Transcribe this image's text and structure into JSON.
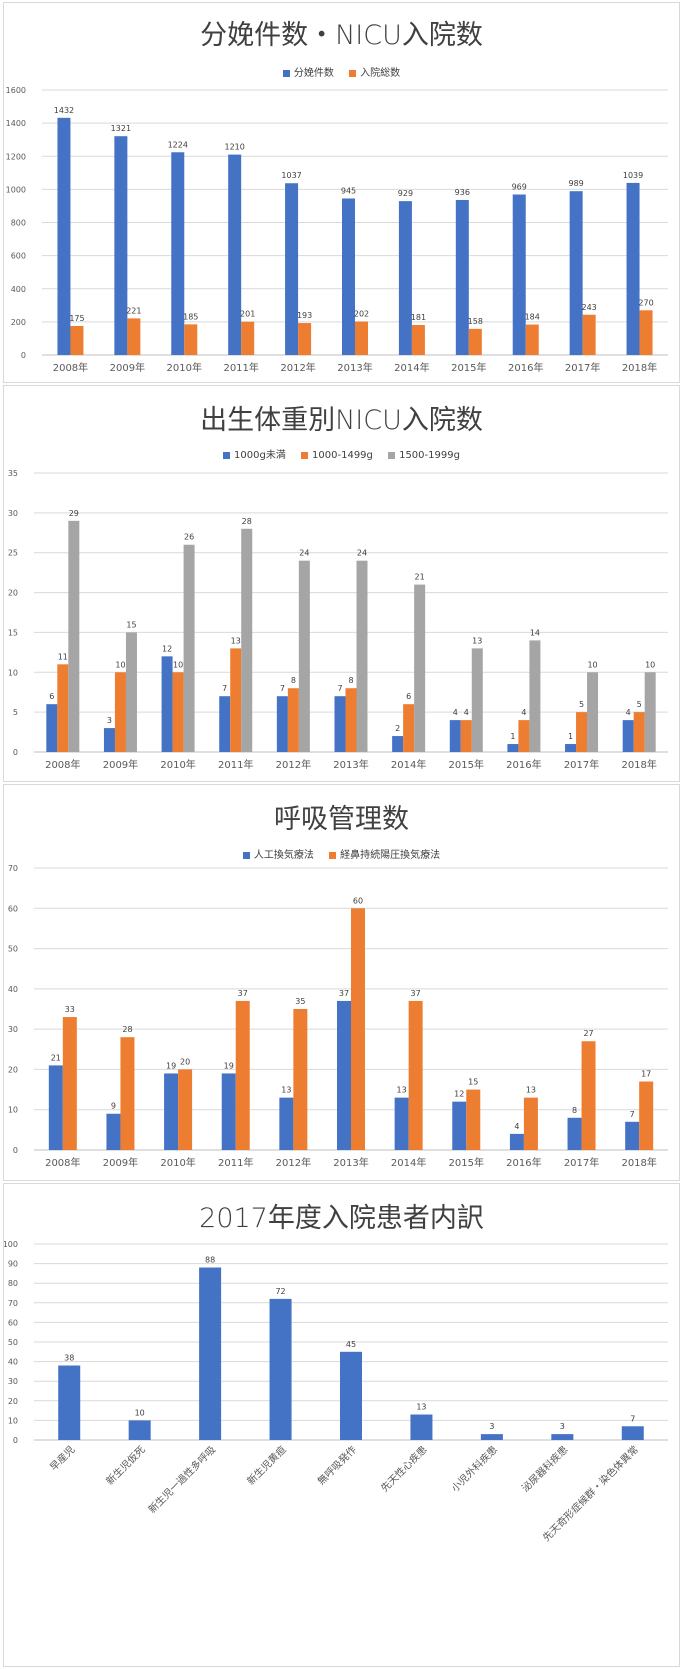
{
  "charts": [
    {
      "type": "bar",
      "title": "分娩件数・NICU入院数",
      "categories": [
        "2008年",
        "2009年",
        "2010年",
        "2011年",
        "2012年",
        "2013年",
        "2014年",
        "2015年",
        "2016年",
        "2017年",
        "2018年"
      ],
      "series": [
        {
          "name": "分娩件数",
          "color": "#4472c4",
          "values": [
            1432,
            1321,
            1224,
            1210,
            1037,
            945,
            929,
            936,
            969,
            989,
            1039
          ]
        },
        {
          "name": "入院総数",
          "color": "#ed7d31",
          "values": [
            175,
            221,
            185,
            201,
            193,
            202,
            181,
            158,
            184,
            243,
            270
          ]
        }
      ],
      "ylim": [
        0,
        1600
      ],
      "yticks": [
        0,
        200,
        400,
        600,
        800,
        1000,
        1200,
        1400,
        1600
      ],
      "grid": true,
      "legend_position": "top"
    },
    {
      "type": "bar",
      "title": "出生体重別NICU入院数",
      "categories": [
        "2008年",
        "2009年",
        "2010年",
        "2011年",
        "2012年",
        "2013年",
        "2014年",
        "2015年",
        "2016年",
        "2017年",
        "2018年"
      ],
      "series": [
        {
          "name": "1000g未満",
          "color": "#4472c4",
          "values": [
            6,
            3,
            12,
            7,
            7,
            7,
            2,
            4,
            1,
            1,
            4
          ]
        },
        {
          "name": "1000-1499g",
          "color": "#ed7d31",
          "values": [
            11,
            10,
            10,
            13,
            8,
            8,
            6,
            4,
            4,
            5,
            5
          ]
        },
        {
          "name": "1500-1999g",
          "color": "#a5a5a5",
          "values": [
            29,
            15,
            26,
            28,
            24,
            24,
            21,
            13,
            14,
            10,
            10
          ]
        }
      ],
      "ylim": [
        0,
        35
      ],
      "yticks": [
        0,
        5,
        10,
        15,
        20,
        25,
        30,
        35
      ],
      "grid": true,
      "legend_position": "top"
    },
    {
      "type": "bar",
      "title": "呼吸管理数",
      "categories": [
        "2008年",
        "2009年",
        "2010年",
        "2011年",
        "2012年",
        "2013年",
        "2014年",
        "2015年",
        "2016年",
        "2017年",
        "2018年"
      ],
      "series": [
        {
          "name": "人工換気療法",
          "color": "#4472c4",
          "values": [
            21,
            9,
            19,
            19,
            13,
            37,
            13,
            12,
            4,
            8,
            7
          ]
        },
        {
          "name": "経鼻持続陽圧換気療法",
          "color": "#ed7d31",
          "values": [
            33,
            28,
            20,
            37,
            35,
            60,
            37,
            15,
            13,
            27,
            17
          ]
        }
      ],
      "ylim": [
        0,
        70
      ],
      "yticks": [
        0,
        10,
        20,
        30,
        40,
        50,
        60,
        70
      ],
      "grid": true,
      "legend_position": "top"
    },
    {
      "type": "bar",
      "title": "2017年度入院患者内訳",
      "categories": [
        "早産児",
        "新生児仮死",
        "新生児一過性多呼吸",
        "新生児黄疸",
        "無呼吸発作",
        "先天性心疾患",
        "小児外科疾患",
        "泌尿器科疾患",
        "先天奇形症候群・染色体異常"
      ],
      "series": [
        {
          "name": "",
          "color": "#4472c4",
          "values": [
            38,
            10,
            88,
            72,
            45,
            13,
            3,
            3,
            7
          ]
        }
      ],
      "ylim": [
        0,
        100
      ],
      "yticks": [
        0,
        10,
        20,
        30,
        40,
        50,
        60,
        70,
        80,
        90,
        100
      ],
      "grid": true,
      "legend_position": "none"
    }
  ]
}
